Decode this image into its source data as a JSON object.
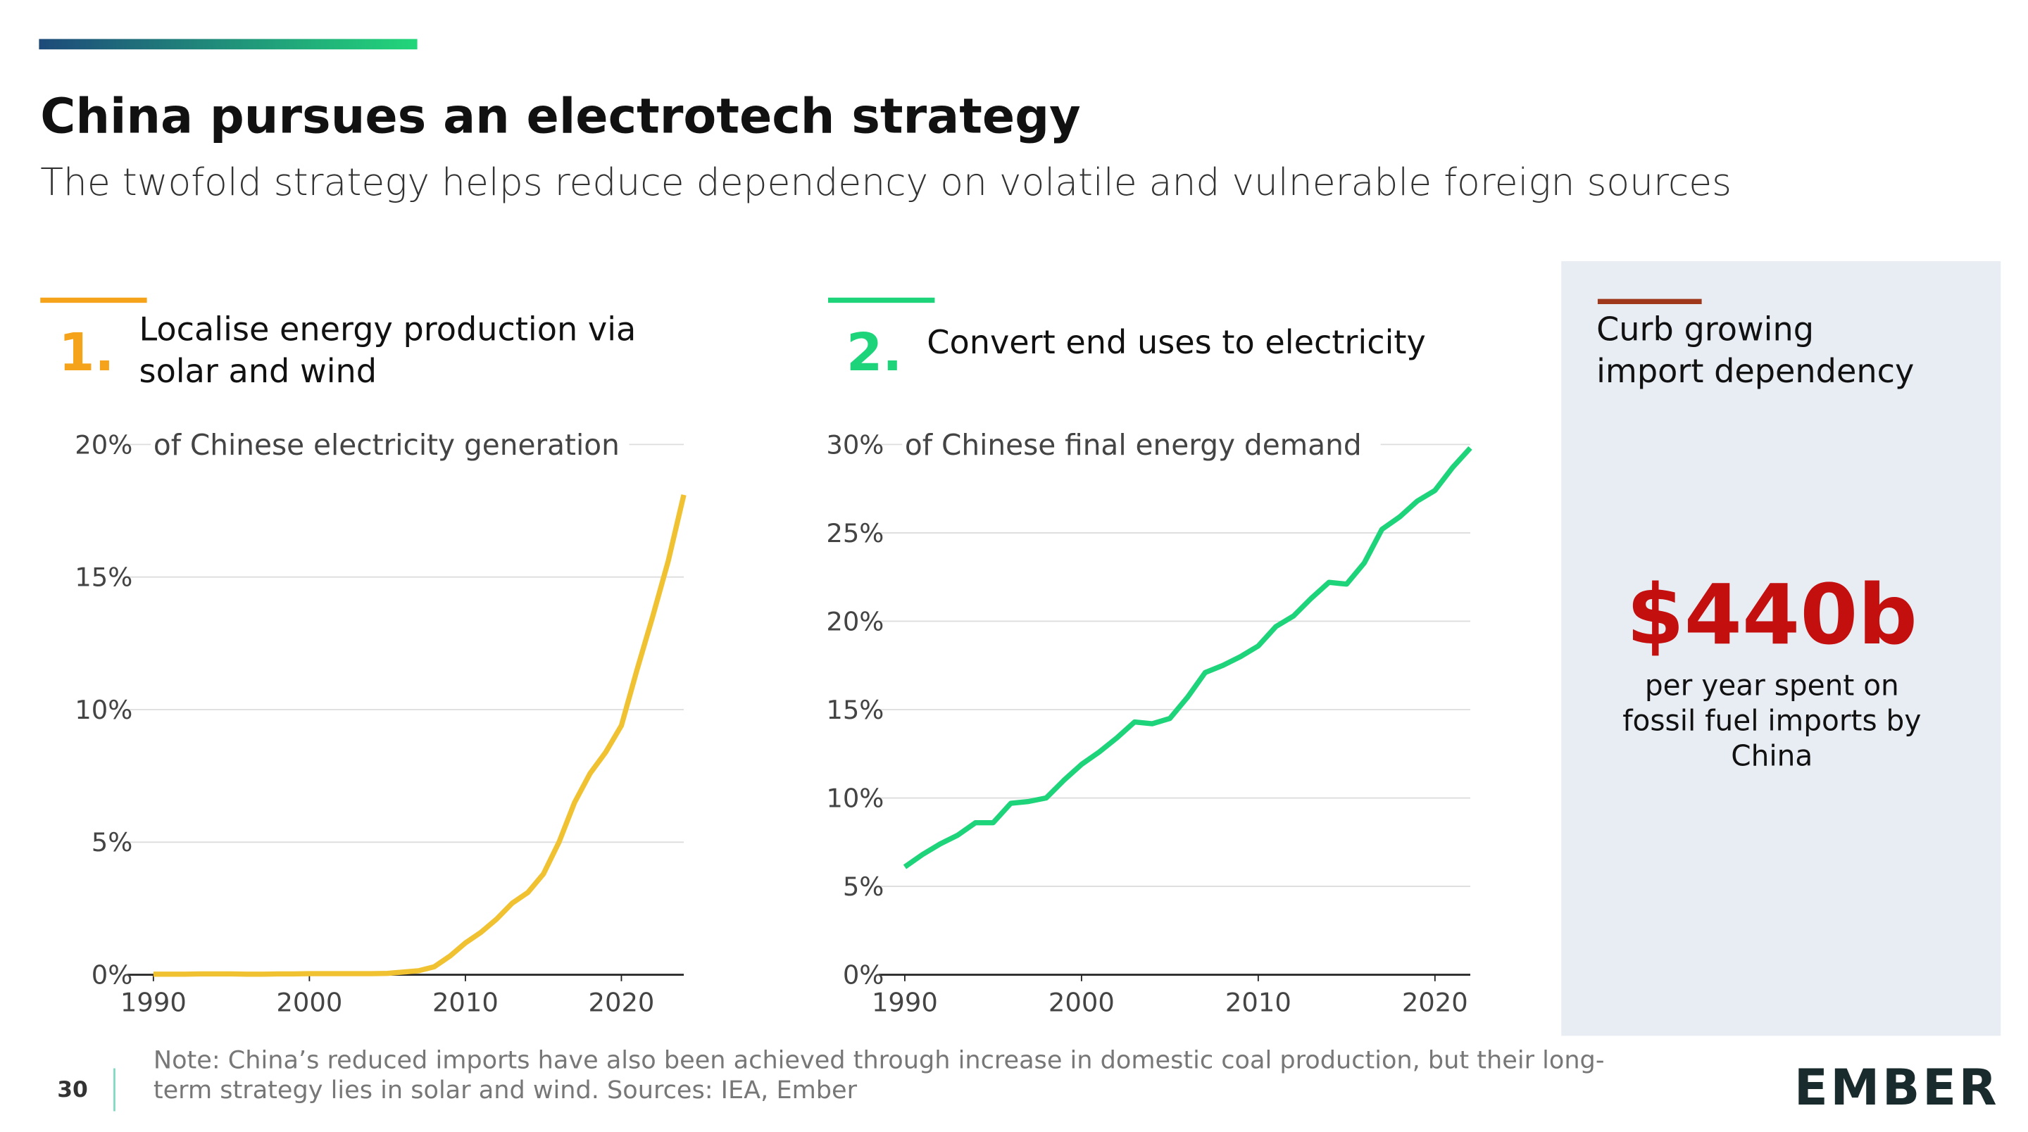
{
  "header": {
    "title": "China pursues an electrotech strategy",
    "subtitle": "The twofold strategy helps reduce dependency on volatile and vulnerable foreign sources"
  },
  "sections": [
    {
      "number": "1.",
      "heading": [
        "Localise energy production via",
        "solar and wind"
      ],
      "color": "#f5a31a"
    },
    {
      "number": "2.",
      "heading": [
        "Convert end uses to electricity"
      ],
      "color": "#1ed47a"
    }
  ],
  "chart_data": [
    {
      "type": "line",
      "y_label": "of Chinese electricity generation",
      "color": "#f0c232",
      "x": [
        1990,
        1991,
        1992,
        1993,
        1994,
        1995,
        1996,
        1997,
        1998,
        1999,
        2000,
        2001,
        2002,
        2003,
        2004,
        2005,
        2006,
        2007,
        2008,
        2009,
        2010,
        2011,
        2012,
        2013,
        2014,
        2015,
        2016,
        2017,
        2018,
        2019,
        2020,
        2021,
        2022,
        2023,
        2024
      ],
      "values": [
        0.02,
        0.02,
        0.02,
        0.03,
        0.03,
        0.03,
        0.02,
        0.02,
        0.03,
        0.03,
        0.04,
        0.04,
        0.04,
        0.04,
        0.04,
        0.05,
        0.1,
        0.15,
        0.3,
        0.7,
        1.2,
        1.6,
        2.1,
        2.7,
        3.1,
        3.8,
        5.0,
        6.5,
        7.6,
        8.4,
        9.4,
        11.5,
        13.5,
        15.6,
        18.1
      ],
      "xlim": [
        1990,
        2024
      ],
      "ylim": [
        0,
        20
      ],
      "xticks": [
        1990,
        2000,
        2010,
        2020
      ],
      "yticks": [
        {
          "value": 0,
          "label": "0%"
        },
        {
          "value": 5,
          "label": "5%"
        },
        {
          "value": 10,
          "label": "10%"
        },
        {
          "value": 15,
          "label": "15%"
        },
        {
          "value": 20,
          "label": "20%"
        }
      ],
      "grid": true
    },
    {
      "type": "line",
      "y_label": "of Chinese final energy demand",
      "color": "#1ed47a",
      "x": [
        1990,
        1991,
        1992,
        1993,
        1994,
        1995,
        1996,
        1997,
        1998,
        1999,
        2000,
        2001,
        2002,
        2003,
        2004,
        2005,
        2006,
        2007,
        2008,
        2009,
        2010,
        2011,
        2012,
        2013,
        2014,
        2015,
        2016,
        2017,
        2018,
        2019,
        2020,
        2021,
        2022
      ],
      "values": [
        6.1,
        6.8,
        7.4,
        7.9,
        8.6,
        8.6,
        9.7,
        9.8,
        10.0,
        11.0,
        11.9,
        12.6,
        13.4,
        14.3,
        14.2,
        14.5,
        15.7,
        17.1,
        17.5,
        18.0,
        18.6,
        19.7,
        20.3,
        21.3,
        22.2,
        22.1,
        23.3,
        25.2,
        25.9,
        26.8,
        27.4,
        28.7,
        29.8
      ],
      "xlim": [
        1990,
        2022
      ],
      "ylim": [
        0,
        30
      ],
      "xticks": [
        1990,
        2000,
        2010,
        2020
      ],
      "yticks": [
        {
          "value": 0,
          "label": "0%"
        },
        {
          "value": 5,
          "label": "5%"
        },
        {
          "value": 10,
          "label": "10%"
        },
        {
          "value": 15,
          "label": "15%"
        },
        {
          "value": 20,
          "label": "20%"
        },
        {
          "value": 25,
          "label": "25%"
        },
        {
          "value": 30,
          "label": "30%"
        }
      ],
      "grid": true
    }
  ],
  "panel": {
    "heading": [
      "Curb growing",
      "import dependency"
    ],
    "figure": "$440b",
    "caption": [
      "per year spent on",
      "fossil fuel imports by",
      "China"
    ]
  },
  "footer": {
    "page": "30",
    "note": [
      "Note: China’s reduced  imports have also been achieved through increase in domestic coal production, but their long-",
      "term strategy lies in solar and wind. Sources: IEA, Ember"
    ],
    "logo": "EMBER"
  }
}
